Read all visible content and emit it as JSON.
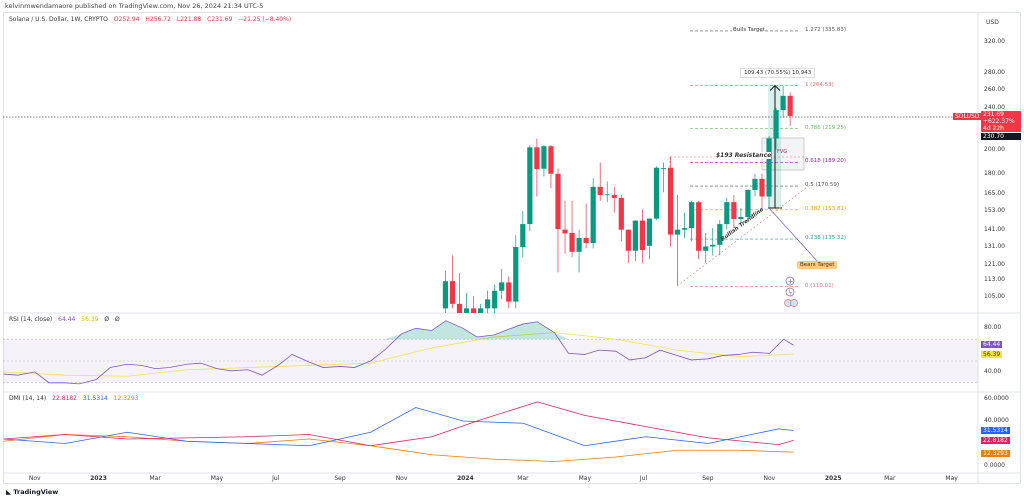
{
  "header": {
    "published": "kelvinmwendamaore published on TradingView.com, Nov 26, 2024 21:34 UTC-5"
  },
  "legend": {
    "symbol": "Solana / U.S. Dollar, 1W, CRYPTO",
    "open": "O252.94",
    "high": "H256.72",
    "low": "L221.88",
    "close": "C231.69",
    "change": "−21.25 (−8.40%)"
  },
  "colors": {
    "up": "#089981",
    "down": "#f23645",
    "rsi": "#7e57c2",
    "rsi_ma": "#f7e14a",
    "plus_di": "#2962ff",
    "minus_di": "#e91e63",
    "adx": "#f57c00"
  },
  "currency": "USD",
  "price_axis": [
    "320.00",
    "280.00",
    "260.00",
    "240.00",
    "200.00",
    "180.00",
    "165.00",
    "153.00",
    "141.00",
    "131.00",
    "121.00",
    "113.00",
    "105.00"
  ],
  "price_tags": {
    "symbol": "SOLUSD",
    "last": "231.69",
    "change": "+622.37%",
    "countdown": "4d 22h",
    "prev": "230.70"
  },
  "annotations": {
    "bulls_target": "Bulls Target",
    "bears_target": "Bears Target",
    "resistance": "$193 Resistance",
    "fvg": "FVG",
    "trendline": "Bullish Trendline",
    "measure": "109.43 (70.55%) 10,943",
    "fib": [
      {
        "label": "1.272 (335.83)",
        "price": 335.83,
        "color": "#555555"
      },
      {
        "label": "1 (264.53)",
        "price": 264.53,
        "color": "#e57373"
      },
      {
        "label": "0.786 (219.25)",
        "price": 219.25,
        "color": "#66bb6a"
      },
      {
        "label": "0.618 (189.20)",
        "price": 189.2,
        "color": "#9c27b0"
      },
      {
        "label": "0.5 (170.59)",
        "price": 170.59,
        "color": "#555555"
      },
      {
        "label": "0.382 (153.81)",
        "price": 153.81,
        "color": "#e6a100"
      },
      {
        "label": "0.236 (135.32)",
        "price": 135.32,
        "color": "#26a69a"
      },
      {
        "label": "0 (110.01)",
        "price": 110.01,
        "color": "#e57373"
      }
    ]
  },
  "rsi": {
    "title": "RSI (14, close)",
    "value": "64.44",
    "ma_value": "56.39",
    "extra1": "Ø",
    "extra2": "Ø",
    "axis": [
      "80.00",
      "40.00"
    ]
  },
  "dmi": {
    "title": "DMI (14, 14)",
    "minus_di": "22.8182",
    "plus_di": "31.5314",
    "adx": "12.3293",
    "axis": [
      "60.0000",
      "40.0000",
      "0.0000"
    ]
  },
  "time_axis": [
    [
      "Nov",
      "2022-11-01"
    ],
    [
      "2023",
      "2023-01-01"
    ],
    [
      "Mar",
      "2023-03-01"
    ],
    [
      "May",
      "2023-05-01"
    ],
    [
      "Jul",
      "2023-07-01"
    ],
    [
      "Sep",
      "2023-09-01"
    ],
    [
      "Nov",
      "2023-11-01"
    ],
    [
      "2024",
      "2024-01-01"
    ],
    [
      "Mar",
      "2024-03-01"
    ],
    [
      "May",
      "2024-05-01"
    ],
    [
      "Jul",
      "2024-07-01"
    ],
    [
      "Sep",
      "2024-09-01"
    ],
    [
      "Nov",
      "2024-11-01"
    ],
    [
      "2025",
      "2025-01-01"
    ],
    [
      "Mar",
      "2025-03-01"
    ],
    [
      "May",
      "2025-05-01"
    ]
  ],
  "footer": {
    "brand": "TradingView"
  },
  "chart_data": {
    "type": "candlestick",
    "title": "Solana / U.S. Dollar, 1W, CRYPTO",
    "y_scale": "log",
    "ylim": [
      100,
      340
    ],
    "candles": [
      [
        "2023-12-18",
        100,
        118,
        95,
        112.6
      ],
      [
        "2023-12-25",
        112.6,
        126,
        100,
        102
      ],
      [
        "2024-01-01",
        102,
        116.8,
        92,
        95
      ],
      [
        "2024-01-08",
        96,
        107,
        90,
        100
      ],
      [
        "2024-01-15",
        100,
        105.6,
        92,
        98
      ],
      [
        "2024-01-22",
        98,
        102,
        94,
        100
      ],
      [
        "2024-01-29",
        100,
        108,
        95,
        104
      ],
      [
        "2024-02-05",
        100,
        111,
        98,
        108
      ],
      [
        "2024-02-12",
        108,
        118.8,
        104,
        112
      ],
      [
        "2024-02-19",
        112,
        115,
        100,
        103
      ],
      [
        "2024-02-26",
        103,
        137.7,
        100,
        130.7
      ],
      [
        "2024-03-04",
        130.7,
        153,
        125,
        144.5
      ],
      [
        "2024-03-11",
        144.5,
        204,
        140,
        202
      ],
      [
        "2024-03-18",
        202,
        210,
        163,
        183.7
      ],
      [
        "2024-03-25",
        184,
        204,
        178,
        203
      ],
      [
        "2024-04-01",
        203,
        204,
        169,
        180
      ],
      [
        "2024-04-08",
        180,
        184,
        117,
        141.4
      ],
      [
        "2024-04-15",
        141,
        160,
        127,
        138.7
      ],
      [
        "2024-04-22",
        139,
        160,
        125,
        128
      ],
      [
        "2024-04-29",
        128,
        141,
        117,
        136
      ],
      [
        "2024-05-06",
        136,
        158,
        130,
        133
      ],
      [
        "2024-05-13",
        133,
        176.6,
        130,
        170
      ],
      [
        "2024-05-20",
        170,
        189,
        160,
        164
      ],
      [
        "2024-05-27",
        164,
        174,
        159,
        164.5
      ],
      [
        "2024-06-03",
        164,
        170,
        152,
        162
      ],
      [
        "2024-06-10",
        162,
        164,
        134,
        141
      ],
      [
        "2024-06-17",
        141,
        141,
        122,
        128.6
      ],
      [
        "2024-06-24",
        128.6,
        146.7,
        123,
        146.7
      ],
      [
        "2024-07-01",
        146.7,
        154,
        121.8,
        129
      ],
      [
        "2024-07-08",
        131.4,
        148,
        124,
        148
      ],
      [
        "2024-07-15",
        148,
        186,
        147,
        184.8
      ],
      [
        "2024-07-22",
        184,
        189,
        166,
        184.5
      ],
      [
        "2024-07-29",
        184.8,
        194,
        131,
        138
      ],
      [
        "2024-08-05",
        138,
        164,
        110.6,
        141
      ],
      [
        "2024-08-12",
        141,
        152,
        136,
        142
      ],
      [
        "2024-08-19",
        142,
        160,
        134,
        159
      ],
      [
        "2024-08-26",
        159,
        160,
        124,
        128.6
      ],
      [
        "2024-09-02",
        128.6,
        139,
        122,
        131
      ],
      [
        "2024-09-09",
        131,
        142,
        126,
        132
      ],
      [
        "2024-09-16",
        132,
        147,
        126,
        144.5
      ],
      [
        "2024-09-23",
        144.5,
        162,
        141,
        159
      ],
      [
        "2024-09-30",
        159,
        164,
        142,
        147.7
      ],
      [
        "2024-10-07",
        147.7,
        155,
        145,
        149
      ],
      [
        "2024-10-14",
        149,
        168,
        146,
        167.7
      ],
      [
        "2024-10-21",
        167.7,
        180,
        163,
        176
      ],
      [
        "2024-10-28",
        176,
        180,
        155,
        163
      ],
      [
        "2024-11-04",
        163,
        212,
        155,
        210
      ],
      [
        "2024-11-11",
        210,
        240,
        200,
        237.7
      ],
      [
        "2024-11-18",
        237.7,
        264.5,
        230,
        252.94
      ],
      [
        "2024-11-25",
        252.94,
        256.72,
        221.88,
        231.69
      ]
    ],
    "rsi": [
      [
        "2022-10-01",
        38
      ],
      [
        "2022-10-15",
        37
      ],
      [
        "2022-11-01",
        40
      ],
      [
        "2022-11-15",
        30
      ],
      [
        "2022-12-01",
        30
      ],
      [
        "2022-12-15",
        29
      ],
      [
        "2023-01-01",
        33
      ],
      [
        "2023-01-15",
        44
      ],
      [
        "2023-02-01",
        47
      ],
      [
        "2023-02-15",
        46
      ],
      [
        "2023-03-01",
        43
      ],
      [
        "2023-03-15",
        44
      ],
      [
        "2023-04-01",
        47
      ],
      [
        "2023-04-15",
        48
      ],
      [
        "2023-05-01",
        43
      ],
      [
        "2023-05-15",
        41
      ],
      [
        "2023-06-01",
        42
      ],
      [
        "2023-06-15",
        37
      ],
      [
        "2023-07-01",
        46
      ],
      [
        "2023-07-15",
        56
      ],
      [
        "2023-08-01",
        49
      ],
      [
        "2023-08-15",
        44
      ],
      [
        "2023-09-01",
        45
      ],
      [
        "2023-09-15",
        44
      ],
      [
        "2023-10-01",
        50
      ],
      [
        "2023-10-15",
        60
      ],
      [
        "2023-11-01",
        75
      ],
      [
        "2023-11-15",
        80
      ],
      [
        "2023-12-01",
        78
      ],
      [
        "2023-12-15",
        87
      ],
      [
        "2024-01-01",
        80
      ],
      [
        "2024-01-15",
        72
      ],
      [
        "2024-02-01",
        74
      ],
      [
        "2024-02-15",
        79
      ],
      [
        "2024-03-01",
        84
      ],
      [
        "2024-03-15",
        86
      ],
      [
        "2024-04-01",
        76
      ],
      [
        "2024-04-15",
        57
      ],
      [
        "2024-05-01",
        56
      ],
      [
        "2024-05-15",
        60
      ],
      [
        "2024-06-01",
        59
      ],
      [
        "2024-06-15",
        51
      ],
      [
        "2024-07-01",
        53
      ],
      [
        "2024-07-15",
        60
      ],
      [
        "2024-08-01",
        55
      ],
      [
        "2024-08-15",
        51
      ],
      [
        "2024-09-01",
        52
      ],
      [
        "2024-09-15",
        55
      ],
      [
        "2024-10-01",
        56
      ],
      [
        "2024-10-15",
        58
      ],
      [
        "2024-11-01",
        57
      ],
      [
        "2024-11-15",
        70
      ],
      [
        "2024-11-25",
        64.44
      ]
    ],
    "rsi_ma": [
      [
        "2022-10-01",
        40
      ],
      [
        "2022-12-01",
        37
      ],
      [
        "2023-02-01",
        36
      ],
      [
        "2023-04-01",
        42
      ],
      [
        "2023-06-01",
        44
      ],
      [
        "2023-08-01",
        46
      ],
      [
        "2023-10-01",
        48
      ],
      [
        "2023-12-01",
        62
      ],
      [
        "2024-02-01",
        72
      ],
      [
        "2024-04-01",
        76
      ],
      [
        "2024-06-01",
        70
      ],
      [
        "2024-08-01",
        60
      ],
      [
        "2024-10-01",
        54
      ],
      [
        "2024-11-25",
        56.39
      ]
    ],
    "adx": [
      [
        "2022-10-01",
        22
      ],
      [
        "2022-12-01",
        28
      ],
      [
        "2023-02-01",
        26
      ],
      [
        "2023-04-01",
        22
      ],
      [
        "2023-06-01",
        20
      ],
      [
        "2023-08-01",
        24
      ],
      [
        "2023-10-01",
        18
      ],
      [
        "2023-12-01",
        10
      ],
      [
        "2024-02-01",
        6
      ],
      [
        "2024-04-01",
        4
      ],
      [
        "2024-06-01",
        8
      ],
      [
        "2024-08-01",
        14
      ],
      [
        "2024-10-01",
        14
      ],
      [
        "2024-11-25",
        12.33
      ]
    ],
    "plus_di": [
      [
        "2022-10-01",
        24
      ],
      [
        "2022-12-01",
        20
      ],
      [
        "2023-02-01",
        30
      ],
      [
        "2023-04-01",
        22
      ],
      [
        "2023-06-01",
        20
      ],
      [
        "2023-08-01",
        18
      ],
      [
        "2023-10-01",
        30
      ],
      [
        "2023-11-15",
        52
      ],
      [
        "2024-01-01",
        40
      ],
      [
        "2024-03-01",
        38
      ],
      [
        "2024-05-01",
        18
      ],
      [
        "2024-07-01",
        26
      ],
      [
        "2024-09-01",
        20
      ],
      [
        "2024-11-10",
        33
      ],
      [
        "2024-11-25",
        31.53
      ]
    ],
    "minus_di": [
      [
        "2022-10-01",
        24
      ],
      [
        "2022-12-01",
        28
      ],
      [
        "2023-02-01",
        24
      ],
      [
        "2023-04-01",
        25
      ],
      [
        "2023-06-01",
        26
      ],
      [
        "2023-08-01",
        28
      ],
      [
        "2023-10-01",
        18
      ],
      [
        "2023-12-01",
        26
      ],
      [
        "2024-01-15",
        40
      ],
      [
        "2024-03-15",
        57
      ],
      [
        "2024-05-01",
        45
      ],
      [
        "2024-07-01",
        35
      ],
      [
        "2024-09-01",
        25
      ],
      [
        "2024-11-10",
        19
      ],
      [
        "2024-11-25",
        22.82
      ]
    ]
  }
}
